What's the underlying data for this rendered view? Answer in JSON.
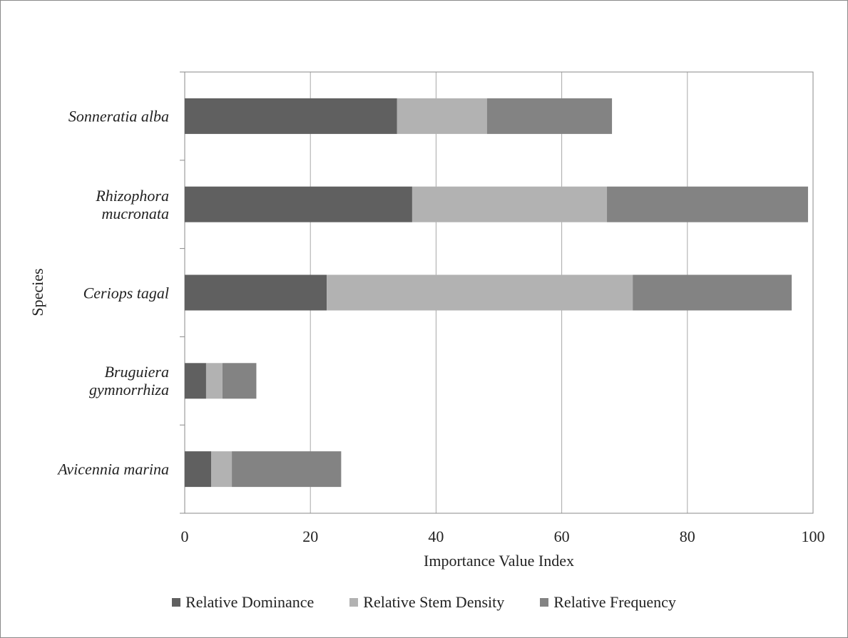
{
  "chart_data": {
    "type": "stacked_bar_horizontal",
    "categories": [
      "Sonneratia alba",
      "Rhizophora mucronata",
      "Ceriops tagal",
      "Bruguiera gymnorrhiza",
      "Avicennia marina"
    ],
    "series": [
      {
        "name": "Relative Dominance",
        "color": "#606060",
        "values": [
          33.8,
          36.2,
          22.6,
          3.4,
          4.2
        ]
      },
      {
        "name": "Relative Stem Density",
        "color": "#b2b2b2",
        "values": [
          14.3,
          31.0,
          48.7,
          2.6,
          3.3
        ]
      },
      {
        "name": "Relative Frequency",
        "color": "#838383",
        "values": [
          19.9,
          32.0,
          25.3,
          5.4,
          17.4
        ]
      }
    ],
    "x_label": "Importance Value Index",
    "y_label": "Species",
    "xlim": [
      0,
      100
    ],
    "xticks": [
      0,
      20,
      40,
      60,
      80,
      100
    ],
    "grid": true,
    "legend": "bottom"
  }
}
